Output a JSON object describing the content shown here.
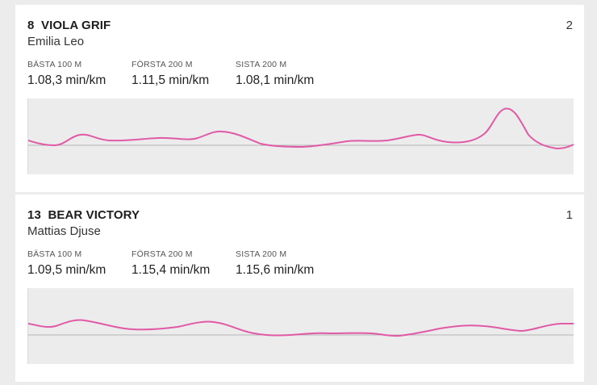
{
  "entries": [
    {
      "number": "8",
      "horse": "VIOLA GRIF",
      "driver": "Emilia Leo",
      "rank": "2",
      "stats": [
        {
          "label": "BÄSTA 100 M",
          "value": "1.08,3 min/km"
        },
        {
          "label": "FÖRSTA 200 M",
          "value": "1.11,5 min/km"
        },
        {
          "label": "SISTA 200 M",
          "value": "1.08,1 min/km"
        }
      ]
    },
    {
      "number": "13",
      "horse": "BEAR VICTORY",
      "driver": "Mattias Djuse",
      "rank": "1",
      "stats": [
        {
          "label": "BÄSTA 100 M",
          "value": "1.09,5 min/km"
        },
        {
          "label": "FÖRSTA 200 M",
          "value": "1.15,4 min/km"
        },
        {
          "label": "SISTA 200 M",
          "value": "1.15,6 min/km"
        }
      ]
    }
  ],
  "colors": {
    "line": "#e05aa6",
    "baseline": "#b5b5b5",
    "chart_bg": "#ececec"
  }
}
